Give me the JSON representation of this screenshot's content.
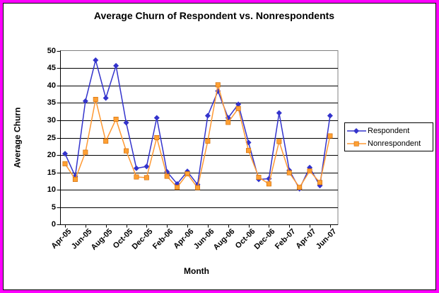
{
  "frame": {
    "border_color": "#FF00FF",
    "background": "#FFFFFF"
  },
  "title": "Average Churn of Respondent vs. Nonrespondents",
  "chart_data": {
    "type": "line",
    "title": "Average Churn of Respondent vs. Nonrespondents",
    "xlabel": "Month",
    "ylabel": "Average Churn",
    "ylim": [
      0,
      50
    ],
    "ytick_step": 5,
    "grid": true,
    "legend_position": "right",
    "x_label_every": 2,
    "categories": [
      "Apr-05",
      "May-05",
      "Jun-05",
      "Jul-05",
      "Aug-05",
      "Sep-05",
      "Oct-05",
      "Nov-05",
      "Dec-05",
      "Jan-06",
      "Feb-06",
      "Mar-06",
      "Apr-06",
      "May-06",
      "Jun-06",
      "Jul-06",
      "Aug-06",
      "Sep-06",
      "Oct-06",
      "Nov-06",
      "Dec-06",
      "Jan-07",
      "Feb-07",
      "Mar-07",
      "Apr-07",
      "May-07",
      "Jun-07"
    ],
    "series": [
      {
        "name": "Respondent",
        "color": "#3333CC",
        "marker": "diamond",
        "values": [
          20.4,
          13.9,
          35.5,
          47.3,
          36.4,
          45.7,
          29.3,
          16.2,
          16.7,
          30.7,
          15.2,
          11.7,
          15.3,
          11.5,
          31.3,
          38.4,
          30.7,
          34.6,
          23.6,
          13.0,
          13.2,
          32.1,
          15.6,
          10.3,
          16.4,
          11.2,
          31.3
        ]
      },
      {
        "name": "Nonrespondent",
        "color": "#FF9933",
        "marker": "square",
        "marker_fill": "#FFA033",
        "marker_edge": "#CC6600",
        "values": [
          17.5,
          13.0,
          20.8,
          36.0,
          24.0,
          30.3,
          21.2,
          13.7,
          13.5,
          25.0,
          13.9,
          10.7,
          14.6,
          10.6,
          24.0,
          40.2,
          29.4,
          33.4,
          21.3,
          13.6,
          11.7,
          23.9,
          14.9,
          10.7,
          15.4,
          12.1,
          25.5
        ]
      }
    ]
  }
}
